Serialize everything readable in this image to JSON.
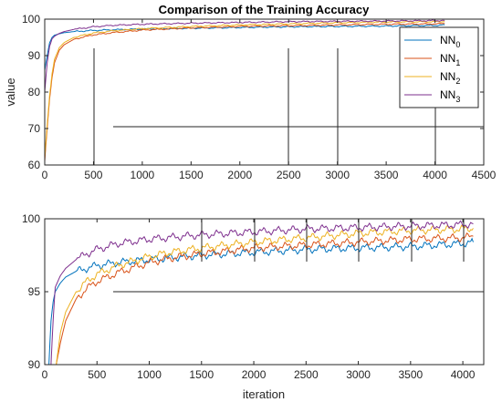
{
  "colors": {
    "NN0": "#0072BD",
    "NN1": "#D95319",
    "NN2": "#EDB120",
    "NN3": "#7E2F8E",
    "axis": "#262626",
    "background": "#ffffff"
  },
  "chart_data": [
    {
      "type": "line",
      "title": "Comparison of the Training Accuracy",
      "xlabel": "",
      "ylabel": "value",
      "xlim": [
        0,
        4500
      ],
      "ylim": [
        60,
        100
      ],
      "xticks": [
        0,
        500,
        1000,
        1500,
        2000,
        2500,
        3000,
        3500,
        4000,
        4500
      ],
      "yticks": [
        60,
        70,
        80,
        90,
        100
      ],
      "grid": false,
      "legend_position": "top-right",
      "legend": [
        {
          "base": "NN",
          "sub": "0"
        },
        {
          "base": "NN",
          "sub": "1"
        },
        {
          "base": "NN",
          "sub": "2"
        },
        {
          "base": "NN",
          "sub": "3"
        }
      ],
      "series": [
        {
          "key": "NN0",
          "x": [
            0,
            25,
            50,
            75,
            100,
            150,
            200,
            300,
            500,
            700,
            1000,
            1500,
            2000,
            2500,
            3000,
            3500,
            4000,
            4100
          ],
          "values": [
            86,
            90,
            93.5,
            95,
            95.6,
            96.0,
            96.3,
            96.6,
            96.9,
            97.1,
            97.3,
            97.5,
            97.7,
            97.9,
            98.0,
            98.1,
            98.3,
            98.4
          ]
        },
        {
          "key": "NN1",
          "x": [
            0,
            25,
            50,
            75,
            100,
            150,
            200,
            300,
            500,
            700,
            1000,
            1500,
            2000,
            2500,
            3000,
            3500,
            4000,
            4100
          ],
          "values": [
            61,
            70,
            78,
            84,
            88,
            91.5,
            93.0,
            94.5,
            95.7,
            96.3,
            97.0,
            97.6,
            98.0,
            98.2,
            98.4,
            98.6,
            98.7,
            98.8
          ]
        },
        {
          "key": "NN2",
          "x": [
            0,
            25,
            50,
            75,
            100,
            150,
            200,
            300,
            500,
            700,
            1000,
            1500,
            2000,
            2500,
            3000,
            3500,
            4000,
            4100
          ],
          "values": [
            62,
            71,
            79,
            85,
            89,
            92.2,
            93.6,
            95.0,
            96.2,
            96.8,
            97.4,
            98.0,
            98.4,
            98.7,
            99.0,
            99.2,
            99.3,
            99.35
          ]
        },
        {
          "key": "NN3",
          "x": [
            0,
            25,
            50,
            75,
            100,
            150,
            200,
            300,
            500,
            700,
            1000,
            1500,
            2000,
            2500,
            3000,
            3500,
            4000,
            4100
          ],
          "values": [
            80,
            88,
            92.5,
            94.6,
            95.3,
            96.1,
            96.6,
            97.2,
            97.9,
            98.3,
            98.6,
            98.9,
            99.1,
            99.3,
            99.4,
            99.5,
            99.6,
            99.65
          ]
        }
      ]
    },
    {
      "type": "line",
      "title": "",
      "xlabel": "iteration",
      "ylabel": "",
      "xlim": [
        0,
        4200
      ],
      "ylim": [
        90,
        100
      ],
      "xticks": [
        0,
        500,
        1000,
        1500,
        2000,
        2500,
        3000,
        3500,
        4000
      ],
      "yticks": [
        90,
        95,
        100
      ],
      "grid": false,
      "series": [
        {
          "key": "NN0",
          "x": [
            40,
            60,
            80,
            100,
            150,
            200,
            300,
            400,
            500,
            700,
            1000,
            1500,
            2000,
            2500,
            3000,
            3500,
            4000,
            4100
          ],
          "values": [
            90,
            93.0,
            94.3,
            95.0,
            95.6,
            96.0,
            96.4,
            96.6,
            96.8,
            97.0,
            97.2,
            97.5,
            97.7,
            97.9,
            98.0,
            98.1,
            98.3,
            98.4
          ]
        },
        {
          "key": "NN1",
          "x": [
            110,
            150,
            200,
            300,
            400,
            500,
            700,
            1000,
            1200,
            1500,
            2000,
            2500,
            3000,
            3500,
            4000,
            4100
          ],
          "values": [
            90,
            91.5,
            93.0,
            94.5,
            95.2,
            95.7,
            96.3,
            97.0,
            97.3,
            97.6,
            98.0,
            98.2,
            98.4,
            98.6,
            98.7,
            98.8
          ]
        },
        {
          "key": "NN2",
          "x": [
            110,
            150,
            200,
            300,
            400,
            500,
            700,
            1000,
            1200,
            1500,
            2000,
            2500,
            3000,
            3500,
            4000,
            4100
          ],
          "values": [
            90,
            92.2,
            93.6,
            95.0,
            95.7,
            96.2,
            96.8,
            97.4,
            97.7,
            98.0,
            98.4,
            98.7,
            99.0,
            99.2,
            99.3,
            99.35
          ]
        },
        {
          "key": "NN3",
          "x": [
            60,
            80,
            100,
            150,
            200,
            300,
            400,
            500,
            700,
            1000,
            1500,
            2000,
            2500,
            3000,
            3500,
            4000,
            4100
          ],
          "values": [
            90,
            93.0,
            95.3,
            96.1,
            96.6,
            97.2,
            97.6,
            97.9,
            98.3,
            98.6,
            98.9,
            99.1,
            99.3,
            99.4,
            99.5,
            99.6,
            99.65
          ]
        }
      ]
    }
  ]
}
